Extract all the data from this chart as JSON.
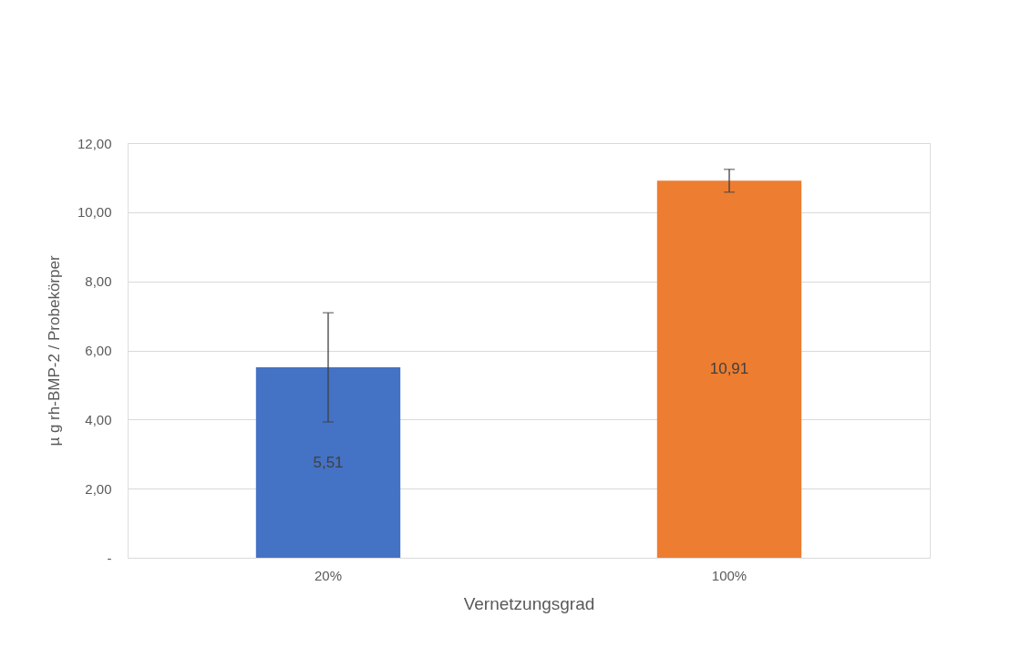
{
  "chart_data": {
    "type": "bar",
    "xlabel": "Vernetzungsgrad",
    "ylabel": "µ g rh-BMP-2 / Probekörper",
    "categories": [
      "20%",
      "100%"
    ],
    "values": [
      5.51,
      10.91
    ],
    "colors": [
      "#4472c4",
      "#ed7d31"
    ],
    "errors": [
      1.58,
      0.33
    ],
    "value_labels": [
      "5,51",
      "10,91"
    ],
    "ylim": [
      0,
      12
    ],
    "yticks": [
      {
        "value": 0,
        "label": "-"
      },
      {
        "value": 2,
        "label": "2,00"
      },
      {
        "value": 4,
        "label": "4,00"
      },
      {
        "value": 6,
        "label": "6,00"
      },
      {
        "value": 8,
        "label": "8,00"
      },
      {
        "value": 10,
        "label": "10,00"
      },
      {
        "value": 12,
        "label": "12,00"
      }
    ],
    "grid": "y"
  }
}
